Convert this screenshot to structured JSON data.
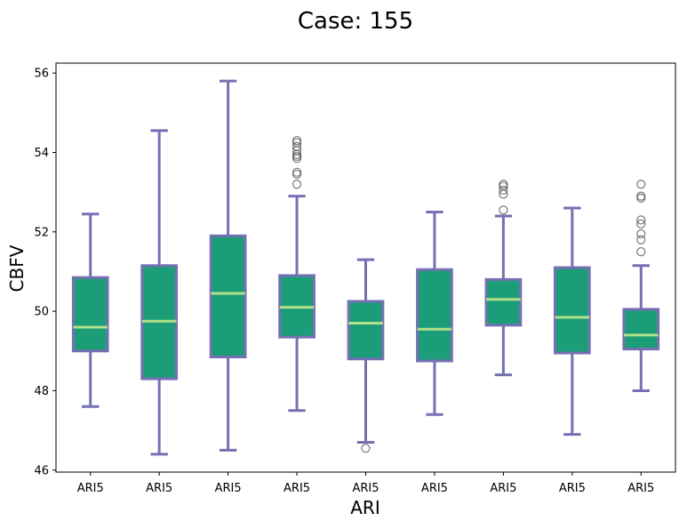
{
  "chart_data": {
    "type": "box",
    "title": "Case: 155",
    "xlabel": "ARI",
    "ylabel": "CBFV",
    "ylim": [
      45.95,
      56.25
    ],
    "yticks": [
      46,
      48,
      50,
      52,
      54,
      56
    ],
    "grid": false,
    "categories": [
      "ARI5",
      "ARI5",
      "ARI5",
      "ARI5",
      "ARI5",
      "ARI5",
      "ARI5",
      "ARI5",
      "ARI5"
    ],
    "boxes": [
      {
        "whisker_low": 47.6,
        "q1": 49.0,
        "median": 49.6,
        "q3": 50.85,
        "whisker_high": 52.45,
        "outliers": []
      },
      {
        "whisker_low": 46.4,
        "q1": 48.3,
        "median": 49.75,
        "q3": 51.15,
        "whisker_high": 54.55,
        "outliers": []
      },
      {
        "whisker_low": 46.5,
        "q1": 48.85,
        "median": 50.45,
        "q3": 51.9,
        "whisker_high": 55.8,
        "outliers": []
      },
      {
        "whisker_low": 47.5,
        "q1": 49.35,
        "median": 50.1,
        "q3": 50.9,
        "whisker_high": 52.9,
        "outliers": [
          53.2,
          53.45,
          53.5,
          53.85,
          53.9,
          53.95,
          54.05,
          54.15,
          54.25,
          54.3
        ]
      },
      {
        "whisker_low": 46.7,
        "q1": 48.8,
        "median": 49.7,
        "q3": 50.25,
        "whisker_high": 51.3,
        "outliers": [
          46.55
        ]
      },
      {
        "whisker_low": 47.4,
        "q1": 48.75,
        "median": 49.55,
        "q3": 51.05,
        "whisker_high": 52.5,
        "outliers": []
      },
      {
        "whisker_low": 48.4,
        "q1": 49.65,
        "median": 50.3,
        "q3": 50.8,
        "whisker_high": 52.4,
        "outliers": [
          52.55,
          52.95,
          53.05,
          53.15,
          53.2
        ]
      },
      {
        "whisker_low": 46.9,
        "q1": 48.95,
        "median": 49.85,
        "q3": 51.1,
        "whisker_high": 52.6,
        "outliers": []
      },
      {
        "whisker_low": 48.0,
        "q1": 49.05,
        "median": 49.4,
        "q3": 50.05,
        "whisker_high": 51.15,
        "outliers": [
          51.5,
          51.8,
          51.95,
          52.2,
          52.3,
          52.85,
          52.9,
          53.2
        ]
      }
    ],
    "colors": {
      "box_fill": "#1b9e77",
      "box_edge": "#7570b3",
      "whisker": "#7570b3",
      "median": "#b2df8a",
      "outlier_edge": "#555555"
    }
  }
}
